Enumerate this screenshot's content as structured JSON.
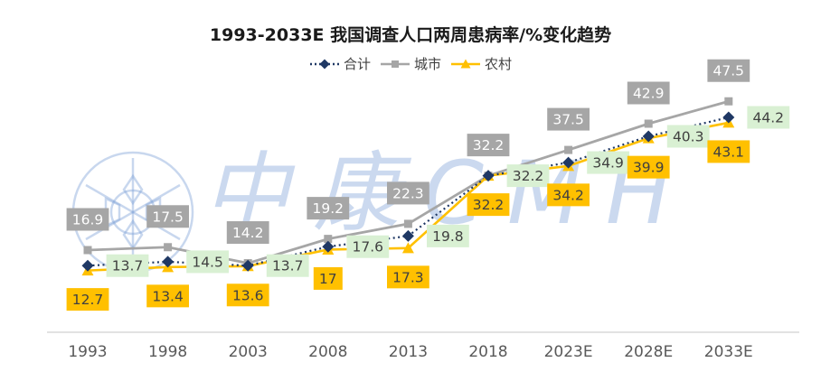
{
  "watermark": {
    "text": "中康CMH"
  },
  "chart_data": {
    "type": "line",
    "title": "1993-2033E 我国调查人口两周患病率/%变化趋势",
    "categories": [
      "1993",
      "1998",
      "2003",
      "2008",
      "2013",
      "2018",
      "2023E",
      "2028E",
      "2033E"
    ],
    "series": [
      {
        "key": "total",
        "name": "合计",
        "values": [
          13.7,
          14.5,
          13.7,
          17.6,
          19.8,
          32.2,
          34.9,
          40.3,
          44.2
        ],
        "color": "#1f3864",
        "line_style": "dotted",
        "marker": "diamond",
        "label_bg": "#d9f0d3",
        "label_color": "#404040"
      },
      {
        "key": "urban",
        "name": "城市",
        "values": [
          16.9,
          17.5,
          14.2,
          19.2,
          22.3,
          32.2,
          37.5,
          42.9,
          47.5
        ],
        "color": "#a6a6a6",
        "line_style": "solid",
        "marker": "square",
        "label_bg": "#a6a6a6",
        "label_color": "#ffffff"
      },
      {
        "key": "rural",
        "name": "农村",
        "values": [
          12.7,
          13.4,
          13.6,
          17,
          17.3,
          32.2,
          34.2,
          39.9,
          43.1
        ],
        "color": "#ffc000",
        "line_style": "solid",
        "marker": "triangle",
        "label_bg": "#ffc000",
        "label_color": "#404040"
      }
    ],
    "ylim": [
      0,
      52
    ],
    "grid": false,
    "legend_position": "top",
    "axis_color": "#d9d9d9",
    "tick_label_color": "#595959"
  }
}
